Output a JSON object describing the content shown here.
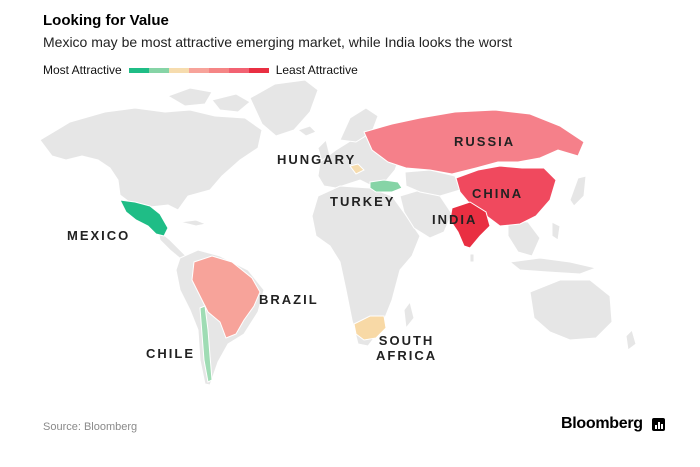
{
  "title": "Looking for Value",
  "subtitle": "Mexico may be most attractive emerging market, while India looks the worst",
  "legend": {
    "low_label": "Most Attractive",
    "high_label": "Least Attractive",
    "colors": [
      "#1fbd86",
      "#86d4a6",
      "#f6dcae",
      "#f7a39a",
      "#f58585",
      "#f26272",
      "#e92f42"
    ]
  },
  "countries": {
    "mexico": {
      "label": "MEXICO",
      "rank": 1,
      "color": "#1fbd86"
    },
    "turkey": {
      "label": "TURKEY",
      "rank": 2,
      "color": "#86d4a6"
    },
    "chile": {
      "label": "CHILE",
      "rank": 2,
      "color": "#9fdcb4"
    },
    "hungary": {
      "label": "HUNGARY",
      "rank": 3,
      "color": "#f6dcae"
    },
    "south_africa": {
      "label_line1": "SOUTH",
      "label_line2": "AFRICA",
      "rank": 3,
      "color": "#f8d9a6"
    },
    "brazil": {
      "label": "BRAZIL",
      "rank": 4,
      "color": "#f7a39a"
    },
    "russia": {
      "label": "RUSSIA",
      "rank": 5,
      "color": "#f5808a"
    },
    "china": {
      "label": "CHINA",
      "rank": 6,
      "color": "#f0495e"
    },
    "india": {
      "label": "INDIA",
      "rank": 7,
      "color": "#e92f42"
    }
  },
  "base_land_color": "#e6e6e6",
  "source": "Source: Bloomberg",
  "brand": "Bloomberg"
}
